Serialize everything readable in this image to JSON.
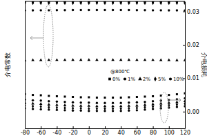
{
  "chart_data": {
    "type": "scatter",
    "ylabel": "介电常数",
    "y2label": "介电损耗",
    "legend": "right",
    "legend_title": "@800℃",
    "x": [
      -80,
      -70,
      -60,
      -50,
      -40,
      -30,
      -20,
      -10,
      0,
      10,
      20,
      30,
      40,
      50,
      60,
      70,
      80,
      90,
      100,
      110,
      120
    ],
    "xlim": [
      -80,
      120
    ],
    "xticks": [
      -80,
      -60,
      -40,
      -20,
      0,
      20,
      40,
      60,
      80,
      100,
      120
    ],
    "ylim": [
      0,
      100
    ],
    "y2lim": [
      -0.005,
      0.033
    ],
    "y2ticks": [
      {
        "value": 0,
        "label": "0.00"
      },
      {
        "value": 0.01,
        "label": "0.01"
      },
      {
        "value": 0.02,
        "label": "0.02"
      },
      {
        "value": 0.03,
        "label": "0.03"
      }
    ],
    "series": [
      {
        "name": "0%",
        "color": "#000000",
        "marker": "square",
        "values": [
          99.4,
          99.4,
          99.4,
          99.4,
          99.4,
          99.4,
          99.4,
          99.4,
          99.4,
          99.4,
          99.4,
          99.4,
          99.4,
          99.4,
          99.4,
          99.4,
          99.4,
          99.4,
          99.4,
          99.4,
          99.4
        ]
      },
      {
        "name": "1%",
        "color": "#000000",
        "marker": "circle",
        "values": [
          92.8,
          92.9,
          93.0,
          93.0,
          93.1,
          93.1,
          93.2,
          93.2,
          93.2,
          93.2,
          93.2,
          93.2,
          93.2,
          93.2,
          93.1,
          93.1,
          93.0,
          93.0,
          92.9,
          92.9,
          92.8
        ]
      },
      {
        "name": "2%",
        "color": "#000000",
        "marker": "triangle",
        "values": [
          53.6,
          53.7,
          53.7,
          53.8,
          53.8,
          53.8,
          53.9,
          53.9,
          53.9,
          53.9,
          53.9,
          53.9,
          53.9,
          53.9,
          53.8,
          53.8,
          53.8,
          53.7,
          53.7,
          53.6,
          53.6
        ]
      },
      {
        "name": "5%",
        "color": "#000000",
        "marker": "diamond",
        "values": [
          98.6,
          98.6,
          98.6,
          98.6,
          98.6,
          98.6,
          98.6,
          98.6,
          98.6,
          98.6,
          98.6,
          98.6,
          98.6,
          98.6,
          98.6,
          98.6,
          98.6,
          98.6,
          98.6,
          98.6,
          98.6
        ]
      },
      {
        "name": "10%",
        "color": "#000000",
        "marker": "circle",
        "values": [
          99.9,
          99.9,
          99.9,
          99.9,
          99.9,
          99.9,
          99.9,
          99.9,
          99.9,
          99.9,
          99.9,
          99.9,
          99.9,
          99.9,
          99.9,
          99.9,
          99.9,
          99.9,
          99.9,
          99.9,
          99.9
        ]
      },
      {
        "name": "0%",
        "color": "#000000",
        "marker": "square",
        "axis": "y2",
        "values": [
          0.0052,
          0.005,
          0.0049,
          0.0047,
          0.0046,
          0.0045,
          0.0044,
          0.0043,
          0.0043,
          0.0042,
          0.0042,
          0.0042,
          0.0042,
          0.0043,
          0.0044,
          0.0045,
          0.0046,
          0.0048,
          0.005,
          0.0052,
          0.0055
        ]
      },
      {
        "name": "1%",
        "color": "#000000",
        "marker": "circle",
        "axis": "y2",
        "values": [
          0.0036,
          0.0034,
          0.0033,
          0.0031,
          0.003,
          0.0029,
          0.0028,
          0.0027,
          0.0027,
          0.0026,
          0.0026,
          0.0026,
          0.0026,
          0.0027,
          0.0028,
          0.0029,
          0.0031,
          0.0033,
          0.0035,
          0.0037,
          0.004
        ]
      },
      {
        "name": "2%",
        "color": "#000000",
        "marker": "triangle",
        "axis": "y2",
        "values": [
          0.0026,
          0.0024,
          0.0023,
          0.0021,
          0.002,
          0.0019,
          0.0018,
          0.0017,
          0.0017,
          0.0016,
          0.0016,
          0.0016,
          0.0016,
          0.0017,
          0.0018,
          0.002,
          0.0022,
          0.0024,
          0.0026,
          0.0028,
          0.0031
        ]
      },
      {
        "name": "5%",
        "color": "#000000",
        "marker": "diamond",
        "axis": "y2",
        "values": [
          0.0018,
          0.0016,
          0.0015,
          0.0013,
          0.0012,
          0.0011,
          0.001,
          0.001,
          0.0009,
          0.0009,
          0.0009,
          0.0009,
          0.0009,
          0.001,
          0.0011,
          0.0013,
          0.0015,
          0.0017,
          0.0019,
          0.0021,
          0.0024
        ]
      },
      {
        "name": "10%",
        "color": "#000000",
        "marker": "circle",
        "axis": "y2",
        "values": [
          0.001,
          0.0008,
          0.0007,
          0.0006,
          0.0005,
          0.0004,
          0.0003,
          0.0003,
          0.0002,
          0.0002,
          0.0002,
          0.0002,
          0.0002,
          0.0003,
          0.0004,
          0.0006,
          0.0008,
          0.001,
          0.0012,
          0.0014,
          0.0016
        ]
      }
    ]
  }
}
